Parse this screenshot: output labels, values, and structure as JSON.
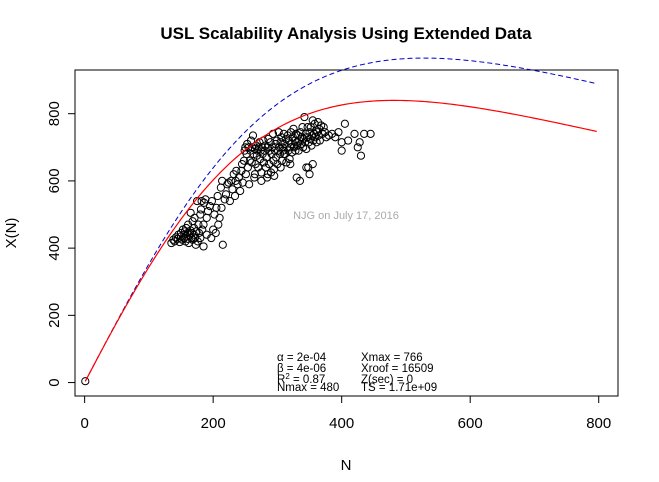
{
  "chart_data": {
    "type": "scatter",
    "title": "USL Scalability Analysis Using Extended Data",
    "xlabel": "N",
    "ylabel": "X(N)",
    "xlim": [
      -15,
      830
    ],
    "ylim": [
      -40,
      930
    ],
    "xticks": [
      "0",
      "200",
      "400",
      "600",
      "800"
    ],
    "xtick_values": [
      0,
      200,
      400,
      600,
      800
    ],
    "yticks": [
      "0",
      "200",
      "400",
      "600",
      "800"
    ],
    "ytick_values": [
      0,
      200,
      400,
      600,
      800
    ],
    "watermark": "NJG on July 17, 2016",
    "stats": {
      "alpha": "α = 2e-04",
      "beta": "β = 4e-06",
      "r2_prefix": "R",
      "r2_suffix": " = 0.87",
      "nmax": "Nmax = 480",
      "xmax": "Xmax = 766",
      "xroof": "Xroof = 16509",
      "zsec": "Z(sec) = 0",
      "ts": "TS = 1.71e+09"
    },
    "usl_model": {
      "gamma": 3.65,
      "alpha": 0.0002,
      "beta": 4.31e-06,
      "color": "#ff0000"
    },
    "dashed_model": {
      "gamma": 3.65,
      "alpha": 0.0,
      "beta": 3.58e-06,
      "color": "#0000cc"
    },
    "points": [
      [
        1,
        4
      ],
      [
        135,
        415
      ],
      [
        138,
        425
      ],
      [
        140,
        420
      ],
      [
        142,
        432
      ],
      [
        145,
        428
      ],
      [
        146,
        440
      ],
      [
        148,
        418
      ],
      [
        150,
        435
      ],
      [
        150,
        445
      ],
      [
        152,
        425
      ],
      [
        153,
        455
      ],
      [
        155,
        430
      ],
      [
        155,
        440
      ],
      [
        156,
        450
      ],
      [
        157,
        420
      ],
      [
        158,
        435
      ],
      [
        158,
        460
      ],
      [
        160,
        428
      ],
      [
        160,
        445
      ],
      [
        161,
        470
      ],
      [
        162,
        415
      ],
      [
        163,
        438
      ],
      [
        165,
        452
      ],
      [
        165,
        505
      ],
      [
        166,
        430
      ],
      [
        167,
        445
      ],
      [
        168,
        425
      ],
      [
        168,
        480
      ],
      [
        170,
        440
      ],
      [
        170,
        460
      ],
      [
        171,
        490
      ],
      [
        172,
        432
      ],
      [
        173,
        410
      ],
      [
        174,
        450
      ],
      [
        175,
        540
      ],
      [
        176,
        420
      ],
      [
        177,
        470
      ],
      [
        178,
        445
      ],
      [
        180,
        430
      ],
      [
        180,
        500
      ],
      [
        181,
        515
      ],
      [
        182,
        540
      ],
      [
        183,
        455
      ],
      [
        185,
        405
      ],
      [
        185,
        470
      ],
      [
        186,
        535
      ],
      [
        188,
        545
      ],
      [
        190,
        440
      ],
      [
        190,
        490
      ],
      [
        192,
        510
      ],
      [
        195,
        525
      ],
      [
        197,
        430
      ],
      [
        198,
        540
      ],
      [
        200,
        455
      ],
      [
        202,
        500
      ],
      [
        204,
        445
      ],
      [
        205,
        520
      ],
      [
        207,
        555
      ],
      [
        208,
        470
      ],
      [
        210,
        490
      ],
      [
        212,
        580
      ],
      [
        213,
        520
      ],
      [
        214,
        600
      ],
      [
        215,
        410
      ],
      [
        218,
        545
      ],
      [
        220,
        560
      ],
      [
        222,
        590
      ],
      [
        224,
        595
      ],
      [
        226,
        540
      ],
      [
        228,
        600
      ],
      [
        230,
        575
      ],
      [
        232,
        620
      ],
      [
        234,
        555
      ],
      [
        235,
        600
      ],
      [
        236,
        630
      ],
      [
        238,
        590
      ],
      [
        240,
        610
      ],
      [
        242,
        570
      ],
      [
        244,
        630
      ],
      [
        245,
        650
      ],
      [
        246,
        595
      ],
      [
        248,
        660
      ],
      [
        249,
        690
      ],
      [
        250,
        700
      ],
      [
        251,
        620
      ],
      [
        252,
        680
      ],
      [
        253,
        710
      ],
      [
        254,
        640
      ],
      [
        255,
        700
      ],
      [
        256,
        590
      ],
      [
        257,
        660
      ],
      [
        258,
        690
      ],
      [
        259,
        720
      ],
      [
        260,
        655
      ],
      [
        261,
        700
      ],
      [
        262,
        735
      ],
      [
        263,
        680
      ],
      [
        264,
        610
      ],
      [
        265,
        695
      ],
      [
        266,
        650
      ],
      [
        267,
        705
      ],
      [
        268,
        675
      ],
      [
        269,
        690
      ],
      [
        270,
        640
      ],
      [
        271,
        700
      ],
      [
        272,
        715
      ],
      [
        273,
        665
      ],
      [
        274,
        690
      ],
      [
        275,
        625
      ],
      [
        276,
        700
      ],
      [
        277,
        680
      ],
      [
        278,
        720
      ],
      [
        279,
        655
      ],
      [
        280,
        690
      ],
      [
        281,
        705
      ],
      [
        282,
        640
      ],
      [
        283,
        670
      ],
      [
        284,
        610
      ],
      [
        285,
        700
      ],
      [
        286,
        725
      ],
      [
        287,
        650
      ],
      [
        288,
        690
      ],
      [
        289,
        715
      ],
      [
        290,
        625
      ],
      [
        291,
        680
      ],
      [
        292,
        700
      ],
      [
        293,
        740
      ],
      [
        294,
        660
      ],
      [
        295,
        635
      ],
      [
        296,
        690
      ],
      [
        297,
        710
      ],
      [
        298,
        670
      ],
      [
        299,
        720
      ],
      [
        300,
        650
      ],
      [
        301,
        690
      ],
      [
        302,
        745
      ],
      [
        303,
        700
      ],
      [
        304,
        680
      ],
      [
        305,
        715
      ],
      [
        306,
        730
      ],
      [
        307,
        660
      ],
      [
        308,
        700
      ],
      [
        309,
        690
      ],
      [
        310,
        740
      ],
      [
        311,
        710
      ],
      [
        312,
        680
      ],
      [
        313,
        725
      ],
      [
        314,
        655
      ],
      [
        315,
        700
      ],
      [
        316,
        735
      ],
      [
        317,
        690
      ],
      [
        318,
        720
      ],
      [
        319,
        665
      ],
      [
        320,
        700
      ],
      [
        321,
        745
      ],
      [
        322,
        710
      ],
      [
        323,
        685
      ],
      [
        324,
        730
      ],
      [
        325,
        755
      ],
      [
        326,
        700
      ],
      [
        327,
        720
      ],
      [
        328,
        690
      ],
      [
        329,
        740
      ],
      [
        330,
        715
      ],
      [
        331,
        705
      ],
      [
        332,
        735
      ],
      [
        333,
        690
      ],
      [
        334,
        720
      ],
      [
        335,
        600
      ],
      [
        336,
        745
      ],
      [
        337,
        710
      ],
      [
        338,
        730
      ],
      [
        339,
        760
      ],
      [
        340,
        700
      ],
      [
        341,
        725
      ],
      [
        342,
        790
      ],
      [
        343,
        715
      ],
      [
        344,
        740
      ],
      [
        345,
        695
      ],
      [
        346,
        730
      ],
      [
        347,
        760
      ],
      [
        348,
        640
      ],
      [
        349,
        715
      ],
      [
        350,
        745
      ],
      [
        351,
        725
      ],
      [
        352,
        760
      ],
      [
        353,
        705
      ],
      [
        354,
        735
      ],
      [
        355,
        780
      ],
      [
        356,
        720
      ],
      [
        357,
        740
      ],
      [
        358,
        770
      ],
      [
        359,
        730
      ],
      [
        360,
        750
      ],
      [
        361,
        715
      ],
      [
        362,
        745
      ],
      [
        363,
        775
      ],
      [
        364,
        735
      ],
      [
        365,
        755
      ],
      [
        366,
        720
      ],
      [
        368,
        765
      ],
      [
        370,
        740
      ],
      [
        372,
        760
      ],
      [
        374,
        745
      ],
      [
        376,
        730
      ],
      [
        355,
        650
      ],
      [
        350,
        620
      ],
      [
        345,
        640
      ],
      [
        330,
        610
      ],
      [
        320,
        650
      ],
      [
        310,
        680
      ],
      [
        305,
        640
      ],
      [
        295,
        615
      ],
      [
        285,
        620
      ],
      [
        275,
        600
      ],
      [
        265,
        620
      ],
      [
        380,
        735
      ],
      [
        385,
        740
      ],
      [
        390,
        730
      ],
      [
        395,
        745
      ],
      [
        400,
        715
      ],
      [
        400,
        690
      ],
      [
        405,
        770
      ],
      [
        410,
        720
      ],
      [
        420,
        740
      ],
      [
        425,
        700
      ],
      [
        428,
        715
      ],
      [
        430,
        675
      ],
      [
        435,
        740
      ],
      [
        445,
        740
      ]
    ]
  }
}
